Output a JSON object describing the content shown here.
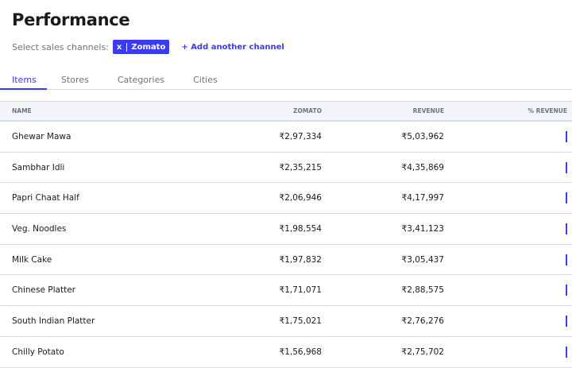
{
  "title": "Performance",
  "channels": {
    "label": "Select sales channels:",
    "selected": [
      {
        "remove": "x",
        "name": "Zomato"
      }
    ],
    "add": "+ Add another channel"
  },
  "tabs": [
    "Items",
    "Stores",
    "Categories",
    "Cities"
  ],
  "columns": [
    "NAME",
    "ZOMATO",
    "REVENUE",
    "% REVENUE"
  ],
  "accent": "#3b3bf0",
  "rows": [
    {
      "name": "Ghewar Mawa",
      "zomato": "₹2,97,334",
      "revenue": "₹5,03,962"
    },
    {
      "name": "Sambhar Idli",
      "zomato": "₹2,35,215",
      "revenue": "₹4,35,869"
    },
    {
      "name": "Papri Chaat Half",
      "zomato": "₹2,06,946",
      "revenue": "₹4,17,997"
    },
    {
      "name": "Veg. Noodles",
      "zomato": "₹1,98,554",
      "revenue": "₹3,41,123"
    },
    {
      "name": "Milk Cake",
      "zomato": "₹1,97,832",
      "revenue": "₹3,05,437"
    },
    {
      "name": "Chinese Platter",
      "zomato": "₹1,71,071",
      "revenue": "₹2,88,575"
    },
    {
      "name": "South Indian Platter",
      "zomato": "₹1,75,021",
      "revenue": "₹2,76,276"
    },
    {
      "name": "Chilly Potato",
      "zomato": "₹1,56,968",
      "revenue": "₹2,75,702"
    }
  ]
}
